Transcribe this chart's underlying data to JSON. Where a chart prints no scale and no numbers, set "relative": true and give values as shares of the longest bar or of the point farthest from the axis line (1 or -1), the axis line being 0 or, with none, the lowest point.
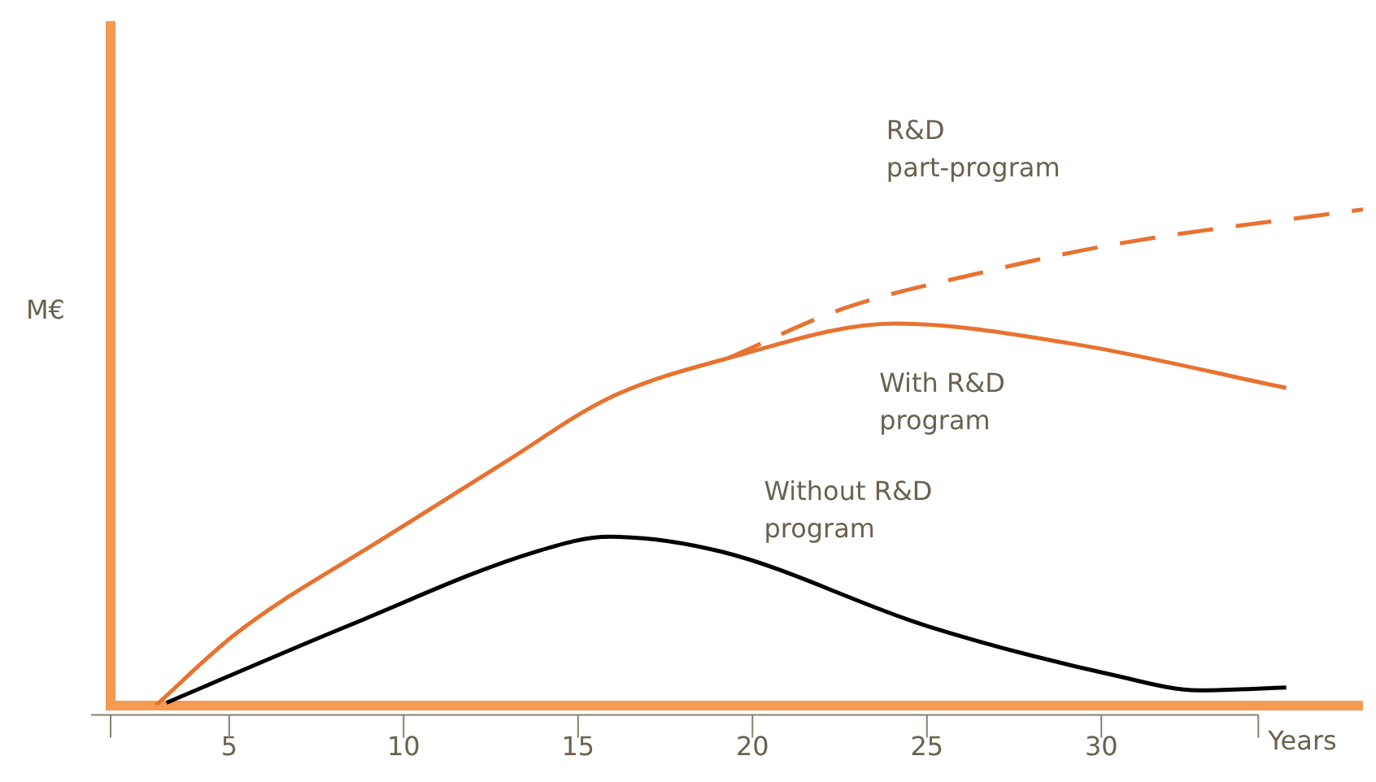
{
  "chart_data": {
    "type": "line",
    "relative": true,
    "ylabel": "M€",
    "xlabel": "Years",
    "xlim": [
      1.6,
      37.5
    ],
    "xticks": [
      {
        "value": 1.6,
        "label": null
      },
      5,
      10,
      15,
      20,
      25,
      30,
      {
        "value": 34.5,
        "label": null
      }
    ],
    "grid": false,
    "legend": false,
    "marker": "none",
    "series": [
      {
        "name": "With R&D program",
        "color": "#e87230",
        "line_style": "solid",
        "x": [
          2.9,
          5.2,
          9.5,
          12.9,
          15.9,
          19.3,
          24.1,
          29.1,
          35.3
        ],
        "values": [
          0,
          0.145,
          0.34,
          0.49,
          0.62,
          0.7,
          0.77,
          0.73,
          0.64
        ]
      },
      {
        "name": "R&D part-program",
        "color": "#e87230",
        "line_style": "dashed",
        "x": [
          19.3,
          22.6,
          26.4,
          30.4,
          37.5
        ],
        "values": [
          0.7,
          0.8,
          0.87,
          0.93,
          1
        ]
      },
      {
        "name": "Without R&D program",
        "color": "#000000",
        "line_style": "solid",
        "x": [
          3.2,
          8.4,
          13.8,
          15.9,
          19.1,
          25,
          30.4,
          32.8,
          35.3
        ],
        "values": [
          0.005,
          0.16,
          0.31,
          0.34,
          0.31,
          0.16,
          0.06,
          0.03,
          0.036
        ]
      }
    ]
  }
}
